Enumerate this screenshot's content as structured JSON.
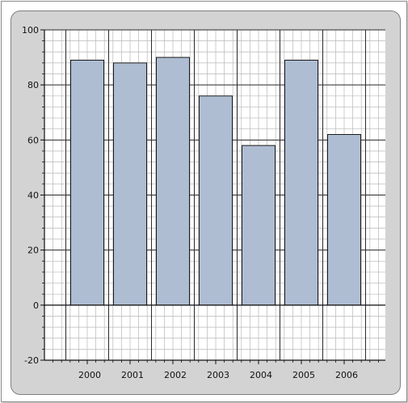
{
  "colors": {
    "panel": "#d3d3d3",
    "plot_background": "#ffffff",
    "bar_fill": "#aebdd2",
    "bar_stroke": "#1a1a1a",
    "major_grid": "#2a2a2a",
    "minor_grid": "#b8b8b8"
  },
  "chart_data": {
    "type": "bar",
    "title": "",
    "xlabel": "",
    "ylabel": "",
    "categories": [
      "2000",
      "2001",
      "2002",
      "2003",
      "2004",
      "2005",
      "2006"
    ],
    "values": [
      89,
      88,
      90,
      76,
      58,
      89,
      62
    ],
    "ylim": [
      -20,
      100
    ],
    "y_ticks": [
      "-20",
      "0",
      "20",
      "40",
      "60",
      "80",
      "100"
    ],
    "grid": true,
    "minor_grid": true,
    "legend": false
  }
}
